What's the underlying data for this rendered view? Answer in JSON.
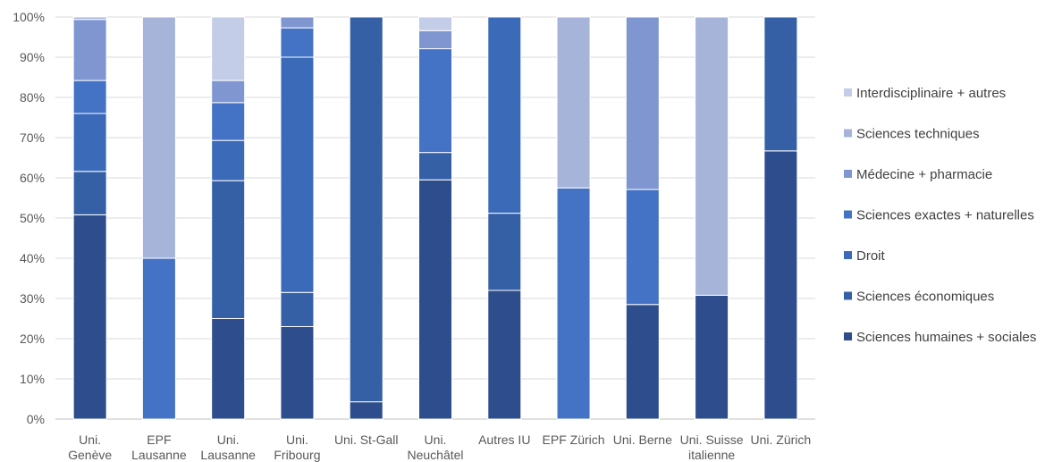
{
  "chart_data": {
    "type": "bar",
    "stacked": true,
    "percent": true,
    "ylim": [
      0,
      100
    ],
    "yticks": [
      "0%",
      "10%",
      "20%",
      "30%",
      "40%",
      "50%",
      "60%",
      "70%",
      "80%",
      "90%",
      "100%"
    ],
    "grid": true,
    "legend_position": "right",
    "categories": [
      [
        "Uni.",
        "Genève"
      ],
      [
        "EPF",
        "Lausanne"
      ],
      [
        "Uni.",
        "Lausanne"
      ],
      [
        "Uni.",
        "Fribourg"
      ],
      [
        "Uni. St-Gall"
      ],
      [
        "Uni.",
        "Neuchâtel"
      ],
      [
        "Autres IU"
      ],
      [
        "EPF Zürich"
      ],
      [
        "Uni. Berne"
      ],
      [
        "Uni. Suisse",
        "italienne"
      ],
      [
        "Uni. Zürich"
      ]
    ],
    "series": [
      {
        "name": "Sciences humaines + sociales",
        "color": "#2e4d8c",
        "values": [
          50.8,
          0,
          25,
          23,
          4.3,
          59.5,
          32,
          0,
          28.5,
          30.8,
          66.7
        ]
      },
      {
        "name": "Sciences économiques",
        "color": "#3560a6",
        "values": [
          10.8,
          0,
          34.3,
          8.5,
          95.7,
          6.8,
          19.2,
          0,
          0,
          0,
          33.3
        ]
      },
      {
        "name": "Droit",
        "color": "#3a6ab8",
        "values": [
          14.4,
          0,
          10,
          58.5,
          0,
          0,
          48.8,
          0,
          0,
          0,
          0
        ]
      },
      {
        "name": "Sciences exactes + naturelles",
        "color": "#4472c4",
        "values": [
          8.2,
          40,
          9.4,
          7.3,
          0,
          25.8,
          0,
          57.5,
          28.6,
          0,
          0
        ]
      },
      {
        "name": "Médecine + pharmacie",
        "color": "#7f96d0",
        "values": [
          15.2,
          0,
          5.5,
          2.7,
          0,
          4.5,
          0,
          0,
          42.9,
          0,
          0
        ]
      },
      {
        "name": "Sciences techniques",
        "color": "#a6b4da",
        "values": [
          0.6,
          60,
          0,
          0,
          0,
          0,
          0,
          42.5,
          0,
          69.2,
          0
        ]
      },
      {
        "name": "Interdisciplinaire + autres",
        "color": "#c3cde7",
        "values": [
          0,
          0,
          15.8,
          0,
          0,
          3.4,
          0,
          0,
          0,
          0,
          0
        ]
      }
    ]
  }
}
